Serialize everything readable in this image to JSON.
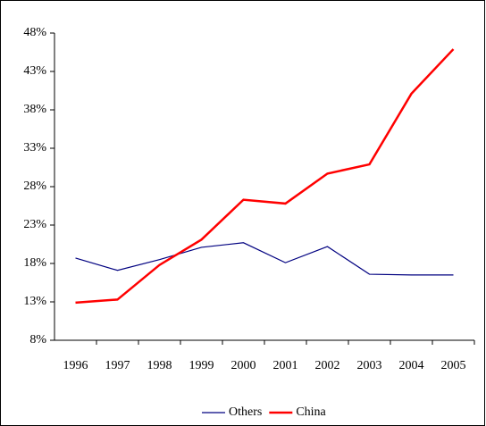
{
  "chart_data": {
    "type": "line",
    "categories": [
      "1996",
      "1997",
      "1998",
      "1999",
      "2000",
      "2001",
      "2002",
      "2003",
      "2004",
      "2005"
    ],
    "series": [
      {
        "name": "Others",
        "color": "#000080",
        "values": [
          18.7,
          17.1,
          18.5,
          20.1,
          20.7,
          18.1,
          20.2,
          16.6,
          16.5,
          16.5
        ]
      },
      {
        "name": "China",
        "color": "#ff0000",
        "values": [
          12.9,
          13.3,
          17.8,
          21.1,
          26.3,
          25.8,
          29.7,
          30.9,
          40.1,
          45.9
        ]
      }
    ],
    "ylim": [
      8,
      48
    ],
    "yticks": [
      {
        "value": 8,
        "label": "8%"
      },
      {
        "value": 13,
        "label": "13%"
      },
      {
        "value": 18,
        "label": "18%"
      },
      {
        "value": 23,
        "label": "23%"
      },
      {
        "value": 28,
        "label": "28%"
      },
      {
        "value": 33,
        "label": "33%"
      },
      {
        "value": 38,
        "label": "38%"
      },
      {
        "value": 43,
        "label": "43%"
      },
      {
        "value": 48,
        "label": "48%"
      }
    ],
    "legend": "bottom"
  }
}
